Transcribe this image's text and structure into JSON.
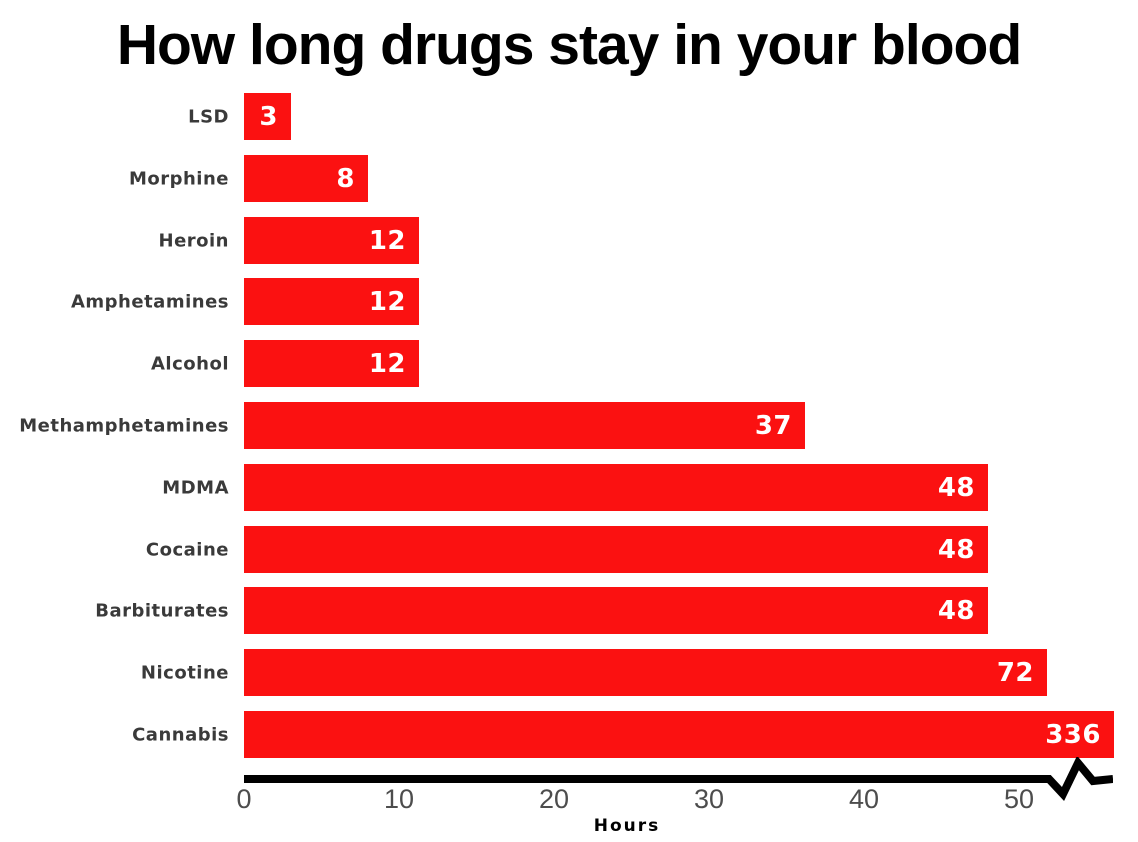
{
  "chart_data": {
    "type": "bar",
    "orientation": "horizontal",
    "title": "How long drugs stay in your blood",
    "xlabel": "Hours",
    "categories": [
      "LSD",
      "Morphine",
      "Heroin",
      "Amphetamines",
      "Alcohol",
      "Methamphetamines",
      "MDMA",
      "Cocaine",
      "Barbiturates",
      "Nicotine",
      "Cannabis"
    ],
    "values": [
      3,
      8,
      12,
      12,
      12,
      37,
      48,
      48,
      48,
      72,
      336
    ],
    "bars": [
      {
        "label": "LSD",
        "value": 3,
        "value_text": "3",
        "display_hours": 3
      },
      {
        "label": "Morphine",
        "value": 8,
        "value_text": "8",
        "display_hours": 8
      },
      {
        "label": "Heroin",
        "value": 12,
        "value_text": "12",
        "display_hours": 11.3
      },
      {
        "label": "Amphetamines",
        "value": 12,
        "value_text": "12",
        "display_hours": 11.3
      },
      {
        "label": "Alcohol",
        "value": 12,
        "value_text": "12",
        "display_hours": 11.3
      },
      {
        "label": "Methamphetamines",
        "value": 37,
        "value_text": "37",
        "display_hours": 36.2
      },
      {
        "label": "MDMA",
        "value": 48,
        "value_text": "48",
        "display_hours": 48
      },
      {
        "label": "Cocaine",
        "value": 48,
        "value_text": "48",
        "display_hours": 48
      },
      {
        "label": "Barbiturates",
        "value": 48,
        "value_text": "48",
        "display_hours": 48
      },
      {
        "label": "Nicotine",
        "value": 72,
        "value_text": "72",
        "display_hours": 51.8
      },
      {
        "label": "Cannabis",
        "value": 336,
        "value_text": "336",
        "display_hours": 56.1
      }
    ],
    "xticks": [
      0,
      10,
      20,
      30,
      40,
      50
    ],
    "xlim": [
      0,
      56.1
    ],
    "axis_break": true,
    "grid": false,
    "legend": false,
    "colors": {
      "bar": "#fb1111",
      "value_label": "#ffffff",
      "category_label": "#3a3a3a",
      "tick_label": "#4d4d4d",
      "axis_line": "#000000",
      "title": "#000000",
      "background": "#ffffff"
    }
  }
}
